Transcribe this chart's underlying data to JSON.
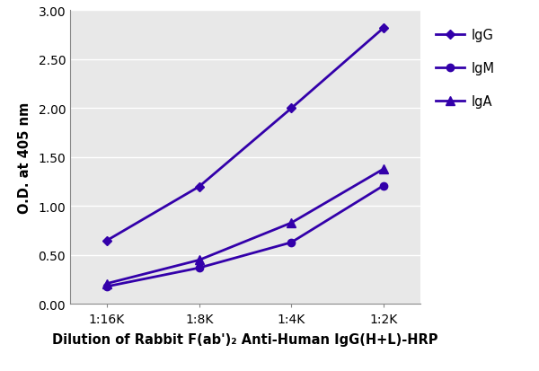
{
  "x_labels": [
    "1:16K",
    "1:8K",
    "1:4K",
    "1:2K"
  ],
  "x_values": [
    0,
    1,
    2,
    3
  ],
  "IgG": [
    0.65,
    1.2,
    2.0,
    2.82
  ],
  "IgM": [
    0.18,
    0.37,
    0.63,
    1.21
  ],
  "IgA": [
    0.21,
    0.45,
    0.83,
    1.38
  ],
  "color_IgG": "#3300aa",
  "color_IgM": "#3300aa",
  "color_IgA": "#3300aa",
  "ylabel": "O.D. at 405 nm",
  "xlabel": "Dilution of Rabbit F(ab')₂ Anti-Human IgG(H+L)-HRP",
  "ylim": [
    0.0,
    3.0
  ],
  "yticks": [
    0.0,
    0.5,
    1.0,
    1.5,
    2.0,
    2.5,
    3.0
  ],
  "axis_label_fontsize": 10.5,
  "tick_fontsize": 10,
  "legend_fontsize": 10.5,
  "background_color": "#ffffff",
  "plot_bg_color": "#e8e8e8",
  "grid_color": "#ffffff",
  "spine_color": "#888888"
}
